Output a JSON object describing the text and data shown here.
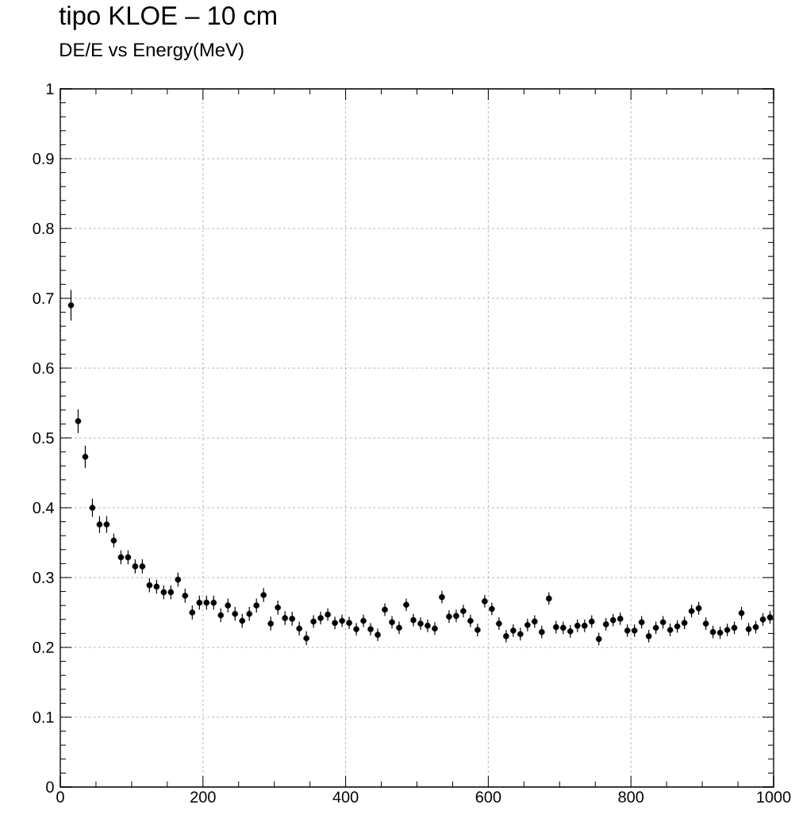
{
  "chart_data": {
    "type": "scatter",
    "title": "tipo KLOE – 10 cm",
    "subtitle": "DE/E vs Energy(MeV)",
    "x": [
      15,
      25,
      35,
      45,
      55,
      65,
      75,
      85,
      95,
      105,
      115,
      125,
      135,
      145,
      155,
      165,
      175,
      185,
      195,
      205,
      215,
      225,
      235,
      245,
      255,
      265,
      275,
      285,
      295,
      305,
      315,
      325,
      335,
      345,
      355,
      365,
      375,
      385,
      395,
      405,
      415,
      425,
      435,
      445,
      455,
      465,
      475,
      485,
      495,
      505,
      515,
      525,
      535,
      545,
      555,
      565,
      575,
      585,
      595,
      605,
      615,
      625,
      635,
      645,
      655,
      665,
      675,
      685,
      695,
      705,
      715,
      725,
      735,
      745,
      755,
      765,
      775,
      785,
      795,
      805,
      815,
      825,
      835,
      845,
      855,
      865,
      875,
      885,
      895,
      905,
      915,
      925,
      935,
      945,
      955,
      965,
      975,
      985,
      995
    ],
    "values": [
      0.69,
      0.524,
      0.473,
      0.4,
      0.376,
      0.376,
      0.353,
      0.329,
      0.329,
      0.316,
      0.316,
      0.289,
      0.287,
      0.279,
      0.279,
      0.297,
      0.274,
      0.25,
      0.264,
      0.264,
      0.264,
      0.246,
      0.26,
      0.248,
      0.238,
      0.248,
      0.26,
      0.275,
      0.234,
      0.257,
      0.242,
      0.241,
      0.227,
      0.213,
      0.237,
      0.242,
      0.247,
      0.235,
      0.238,
      0.235,
      0.226,
      0.238,
      0.226,
      0.218,
      0.254,
      0.236,
      0.228,
      0.261,
      0.239,
      0.234,
      0.231,
      0.227,
      0.272,
      0.244,
      0.245,
      0.252,
      0.238,
      0.225,
      0.266,
      0.255,
      0.234,
      0.216,
      0.224,
      0.219,
      0.232,
      0.237,
      0.222,
      0.27,
      0.229,
      0.228,
      0.223,
      0.231,
      0.231,
      0.237,
      0.212,
      0.233,
      0.239,
      0.241,
      0.224,
      0.224,
      0.236,
      0.216,
      0.228,
      0.236,
      0.225,
      0.23,
      0.235,
      0.252,
      0.256,
      0.234,
      0.222,
      0.221,
      0.225,
      0.228,
      0.249,
      0.226,
      0.229,
      0.24,
      0.243
    ],
    "errors": [
      0.022,
      0.017,
      0.016,
      0.013,
      0.012,
      0.012,
      0.01,
      0.01,
      0.01,
      0.01,
      0.01,
      0.01,
      0.01,
      0.01,
      0.01,
      0.01,
      0.01,
      0.01,
      0.01,
      0.01,
      0.01,
      0.01,
      0.01,
      0.01,
      0.01,
      0.01,
      0.01,
      0.01,
      0.01,
      0.01,
      0.01,
      0.01,
      0.01,
      0.01,
      0.009,
      0.009,
      0.009,
      0.009,
      0.009,
      0.009,
      0.009,
      0.009,
      0.009,
      0.009,
      0.009,
      0.009,
      0.009,
      0.009,
      0.009,
      0.009,
      0.009,
      0.009,
      0.009,
      0.009,
      0.009,
      0.009,
      0.009,
      0.009,
      0.009,
      0.009,
      0.009,
      0.009,
      0.009,
      0.009,
      0.009,
      0.009,
      0.009,
      0.009,
      0.009,
      0.009,
      0.009,
      0.009,
      0.009,
      0.009,
      0.009,
      0.009,
      0.009,
      0.009,
      0.009,
      0.009,
      0.009,
      0.009,
      0.009,
      0.009,
      0.009,
      0.009,
      0.009,
      0.009,
      0.009,
      0.009,
      0.009,
      0.009,
      0.009,
      0.009,
      0.009,
      0.009,
      0.009,
      0.009,
      0.009
    ],
    "color": "#000000",
    "marker": "circle",
    "grid": true,
    "xlim": [
      0,
      1000
    ],
    "ylim": [
      0,
      1
    ],
    "xticks": [
      0,
      200,
      400,
      600,
      800,
      1000
    ],
    "yticks": [
      0,
      0.1,
      0.2,
      0.3,
      0.4,
      0.5,
      0.6,
      0.7,
      0.8,
      0.9,
      1
    ]
  }
}
